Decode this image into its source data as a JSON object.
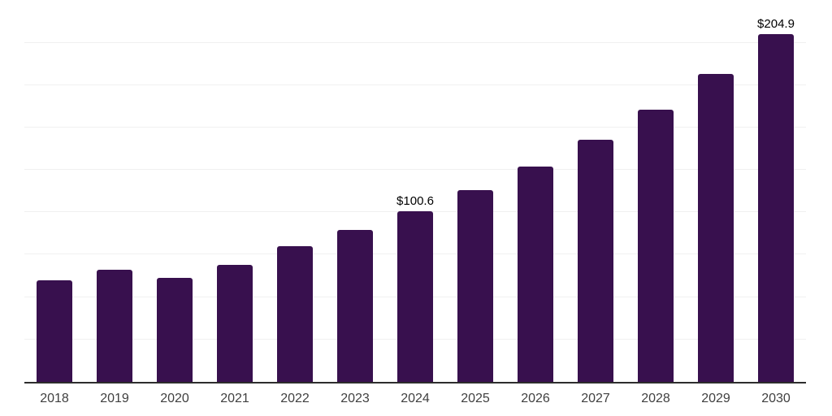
{
  "chart_data": {
    "type": "bar",
    "title": "",
    "xlabel": "",
    "ylabel": "",
    "categories": [
      "2018",
      "2019",
      "2020",
      "2021",
      "2022",
      "2023",
      "2024",
      "2025",
      "2026",
      "2027",
      "2028",
      "2029",
      "2030"
    ],
    "values": [
      59.9,
      66.0,
      61.3,
      69.2,
      80.2,
      89.8,
      100.6,
      113.2,
      126.8,
      143.0,
      160.5,
      181.4,
      204.9
    ],
    "data_labels": [
      "",
      "",
      "",
      "",
      "",
      "",
      "$100.6",
      "",
      "",
      "",
      "",
      "",
      "$204.9"
    ],
    "ylim": [
      0,
      225.2
    ],
    "grid_step": 25,
    "grid": "horizontal",
    "legend": false,
    "y_tick_labels_visible": false,
    "colors": {
      "bar": "#38104E",
      "axis_line": "#2d2d2d",
      "gridline": "#f0f0f0",
      "data_label": "#000000",
      "x_tick_label": "#404040",
      "background": "#ffffff"
    }
  }
}
